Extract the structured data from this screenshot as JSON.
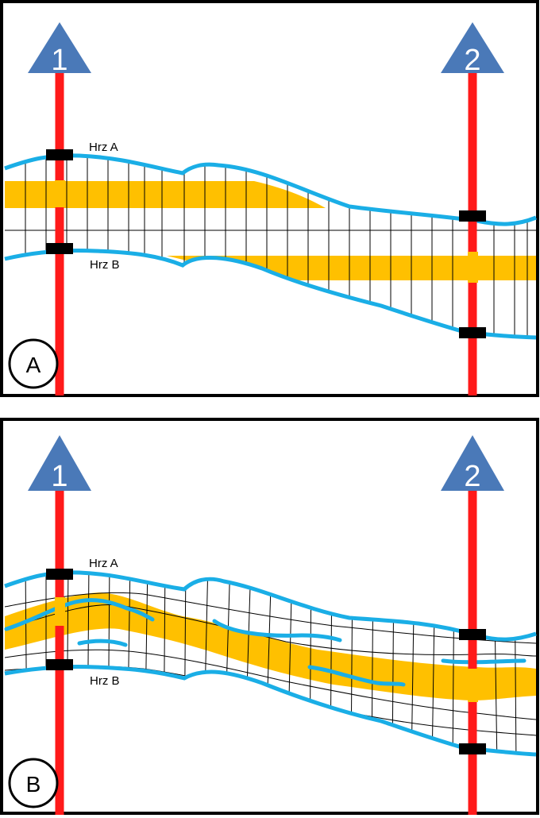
{
  "panels": [
    {
      "id": "A",
      "label": "A",
      "wells": [
        {
          "label": "1"
        },
        {
          "label": "2"
        }
      ],
      "horizons": {
        "top": "Hrz A",
        "bottom": "Hrz B"
      }
    },
    {
      "id": "B",
      "label": "B",
      "wells": [
        {
          "label": "1"
        },
        {
          "label": "2"
        }
      ],
      "horizons": {
        "top": "Hrz A",
        "bottom": "Hrz B"
      }
    }
  ],
  "colors": {
    "frame": "#000000",
    "well": "#ff1a1a",
    "well_marker": "#4a79b8",
    "horizon": "#1aaee6",
    "reservoir": "#ffc000",
    "grid": "#000000",
    "pick": "#000000"
  }
}
